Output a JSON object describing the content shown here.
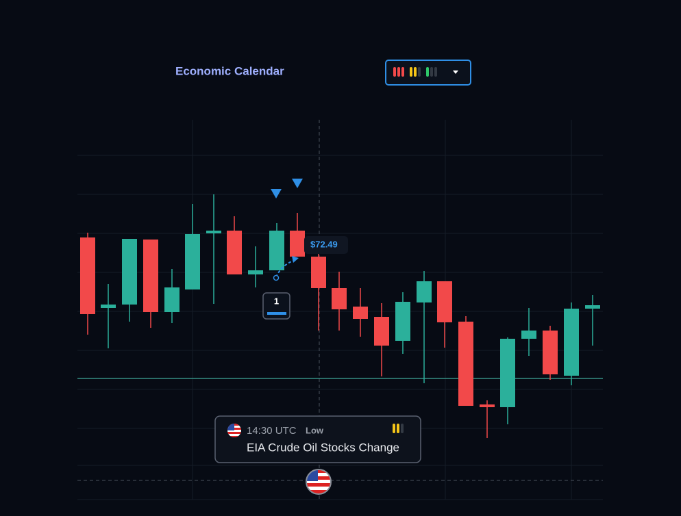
{
  "header": {
    "title": "Economic Calendar"
  },
  "price_label": "$72.49",
  "event_badge": "1",
  "event": {
    "time": "14:30 UTC",
    "impact": "Low",
    "name": "EIA Crude Oil Stocks Change"
  }
}
